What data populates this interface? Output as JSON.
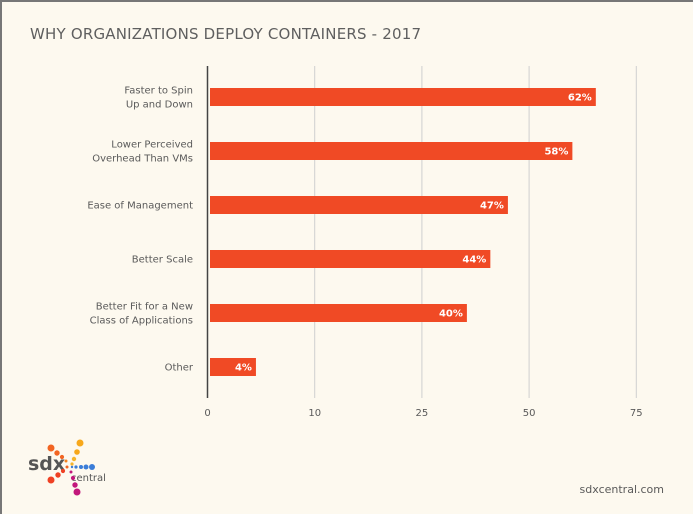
{
  "chart_data": {
    "type": "bar",
    "orientation": "horizontal",
    "title": "WHY ORGANIZATIONS DEPLOY CONTAINERS - 2017",
    "categories": [
      [
        "Faster to Spin",
        "Up and Down"
      ],
      [
        "Lower Perceived",
        "Overhead Than VMs"
      ],
      [
        "Ease of Management"
      ],
      [
        "Better Scale"
      ],
      [
        "Better Fit for a New",
        "Class of Applications"
      ],
      [
        "Other"
      ]
    ],
    "values": [
      62,
      58,
      47,
      44,
      40,
      4
    ],
    "value_labels": [
      "62%",
      "58%",
      "47%",
      "44%",
      "40%",
      "4%"
    ],
    "x_tick_labels": [
      "0",
      "10",
      "25",
      "50",
      "75"
    ],
    "xlabel": "",
    "ylabel": "",
    "grid": true,
    "bar_color": "#f04a25"
  },
  "branding": {
    "logo_text_main": "sdx",
    "logo_text_sub": "central",
    "website": "sdxcentral.com"
  }
}
